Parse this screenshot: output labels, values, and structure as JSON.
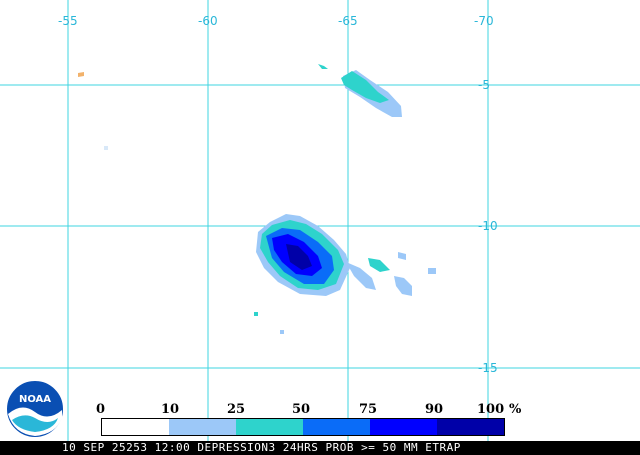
{
  "map": {
    "longitude_labels": [
      "-55",
      "-60",
      "-65",
      "-70"
    ],
    "latitude_labels": [
      "-5",
      "-10",
      "-15"
    ],
    "grid_color": "#3fd4e0",
    "label_color": "#2ab7d8"
  },
  "legend": {
    "ticks": [
      "0",
      "10",
      "25",
      "50",
      "75",
      "90",
      "100"
    ],
    "unit": "%",
    "colors": [
      "#ffffff",
      "#9cc8f8",
      "#2ed3cc",
      "#0a6cf8",
      "#0000ff",
      "#0000a8"
    ]
  },
  "caption": "10 SEP 25253 12:00 DEPRESSION3 24HRS PROB >= 50 MM ETRAP",
  "logo": {
    "text": "NOAA"
  }
}
